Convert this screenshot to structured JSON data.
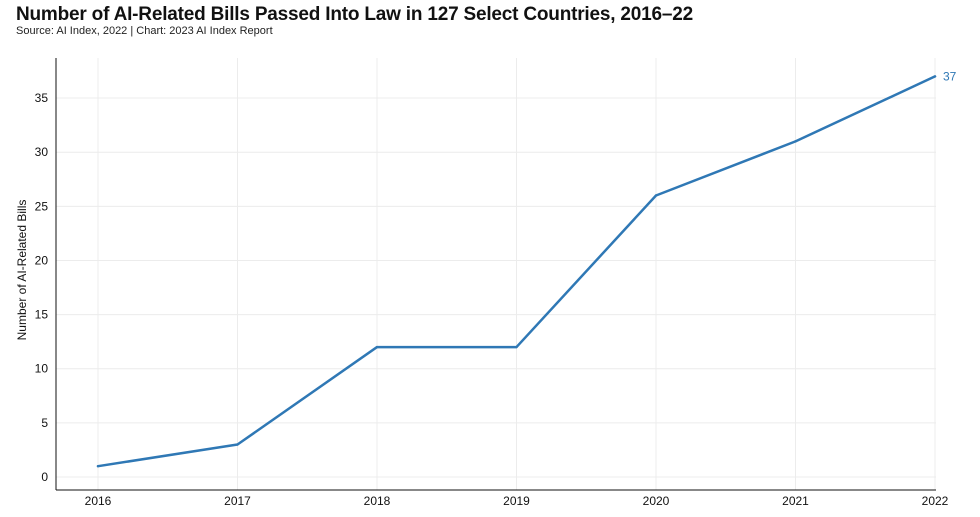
{
  "header": {
    "title": "Number of AI-Related Bills Passed Into Law in 127 Select Countries, 2016–22",
    "subtitle": "Source: AI Index, 2022 | Chart: 2023 AI Index Report"
  },
  "colors": {
    "series": "#2f78b5",
    "grid": "#ececec",
    "axis": "#111111"
  },
  "chart_data": {
    "type": "line",
    "title": "Number of AI-Related Bills Passed Into Law in 127 Select Countries, 2016–22",
    "subtitle": "Source: AI Index, 2022 | Chart: 2023 AI Index Report",
    "xlabel": "",
    "ylabel": "Number of AI-Related Bills",
    "categories": [
      "2016",
      "2017",
      "2018",
      "2019",
      "2020",
      "2021",
      "2022"
    ],
    "series": [
      {
        "values": [
          1,
          3,
          12,
          12,
          26,
          31,
          37
        ],
        "end_label": "37"
      }
    ],
    "yticks": [
      0,
      5,
      10,
      15,
      20,
      25,
      30,
      35
    ],
    "ylim": [
      -1.2,
      38.7
    ],
    "grid": true,
    "legend": "none"
  }
}
